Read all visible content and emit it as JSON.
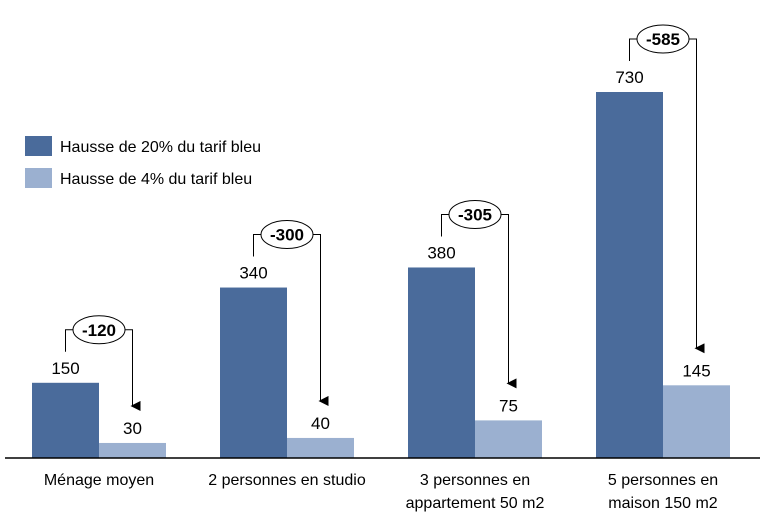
{
  "chart_data": {
    "type": "bar",
    "title": "",
    "xlabel": "",
    "ylabel": "",
    "ylim": [
      0,
      730
    ],
    "grid": false,
    "legend_position": "left-middle",
    "categories": [
      [
        "Ménage moyen"
      ],
      [
        "2 personnes en studio"
      ],
      [
        "3 personnes en",
        "appartement 50 m2"
      ],
      [
        "5 personnes en",
        "maison 150 m2"
      ]
    ],
    "series": [
      {
        "name": "Hausse de 20% du tarif bleu",
        "color": "#4a6b9b",
        "values": [
          150,
          340,
          380,
          730
        ]
      },
      {
        "name": "Hausse de 4% du tarif bleu",
        "color": "#9bb0d0",
        "values": [
          30,
          40,
          75,
          145
        ]
      }
    ],
    "annotations": [
      "-120",
      "-300",
      "-305",
      "-585"
    ]
  }
}
